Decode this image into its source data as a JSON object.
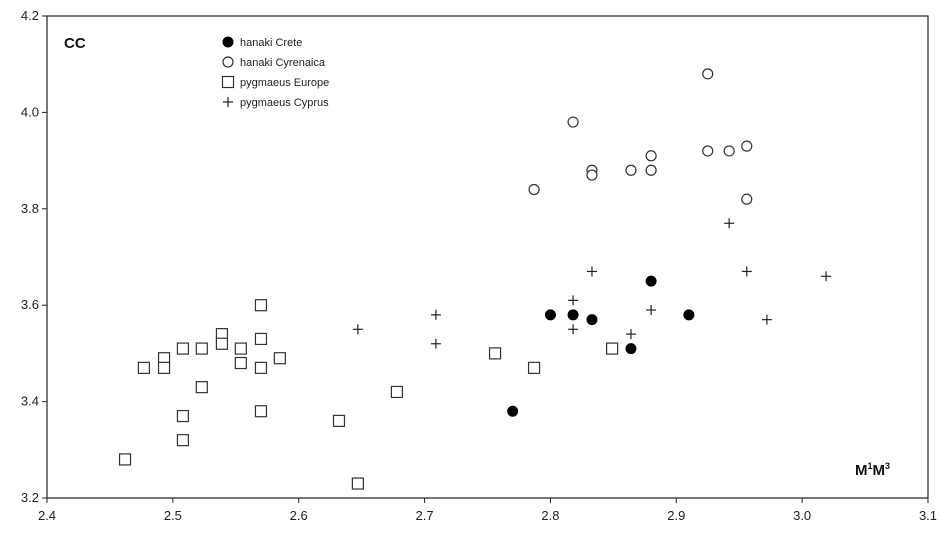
{
  "chart_data": {
    "type": "scatter",
    "title": "",
    "corner_label": "CC",
    "xlabel_main": "M",
    "xlabel_sup1": "1",
    "xlabel_mid": "M",
    "xlabel_sup2": "3",
    "xlim": [
      2.4,
      3.1
    ],
    "ylim": [
      3.2,
      4.2
    ],
    "xticks": [
      "2.4",
      "2.5",
      "2.6",
      "2.7",
      "2.8",
      "2.9",
      "3.0",
      "3.1"
    ],
    "yticks": [
      "3.2",
      "3.4",
      "3.6",
      "3.8",
      "4.0",
      "4.2"
    ],
    "grid": false,
    "legend_position": "top-left",
    "series": [
      {
        "name": "hanaki Crete",
        "marker": "filled-circle",
        "points": [
          [
            2.77,
            3.38
          ],
          [
            2.8,
            3.58
          ],
          [
            2.818,
            3.58
          ],
          [
            2.833,
            3.57
          ],
          [
            2.864,
            3.51
          ],
          [
            2.88,
            3.65
          ],
          [
            2.91,
            3.58
          ]
        ]
      },
      {
        "name": "hanaki Cyrenaica",
        "marker": "open-circle",
        "points": [
          [
            2.787,
            3.84
          ],
          [
            2.818,
            3.98
          ],
          [
            2.833,
            3.88
          ],
          [
            2.833,
            3.87
          ],
          [
            2.864,
            3.88
          ],
          [
            2.88,
            3.91
          ],
          [
            2.88,
            3.88
          ],
          [
            2.925,
            4.08
          ],
          [
            2.925,
            3.92
          ],
          [
            2.942,
            3.92
          ],
          [
            2.956,
            3.93
          ],
          [
            2.956,
            3.82
          ]
        ]
      },
      {
        "name": "pygmaeus Europe",
        "marker": "open-square",
        "points": [
          [
            2.462,
            3.28
          ],
          [
            2.477,
            3.47
          ],
          [
            2.493,
            3.49
          ],
          [
            2.493,
            3.47
          ],
          [
            2.508,
            3.51
          ],
          [
            2.508,
            3.37
          ],
          [
            2.508,
            3.32
          ],
          [
            2.523,
            3.51
          ],
          [
            2.523,
            3.43
          ],
          [
            2.539,
            3.54
          ],
          [
            2.539,
            3.52
          ],
          [
            2.554,
            3.51
          ],
          [
            2.554,
            3.48
          ],
          [
            2.57,
            3.6
          ],
          [
            2.57,
            3.53
          ],
          [
            2.57,
            3.47
          ],
          [
            2.57,
            3.38
          ],
          [
            2.585,
            3.49
          ],
          [
            2.632,
            3.36
          ],
          [
            2.647,
            3.23
          ],
          [
            2.678,
            3.42
          ],
          [
            2.756,
            3.5
          ],
          [
            2.787,
            3.47
          ],
          [
            2.849,
            3.51
          ]
        ]
      },
      {
        "name": "pygmaeus Cyprus",
        "marker": "plus",
        "points": [
          [
            2.647,
            3.55
          ],
          [
            2.709,
            3.58
          ],
          [
            2.709,
            3.52
          ],
          [
            2.818,
            3.61
          ],
          [
            2.818,
            3.55
          ],
          [
            2.833,
            3.67
          ],
          [
            2.864,
            3.54
          ],
          [
            2.88,
            3.59
          ],
          [
            2.942,
            3.77
          ],
          [
            2.956,
            3.67
          ],
          [
            2.972,
            3.57
          ],
          [
            3.019,
            3.66
          ]
        ]
      }
    ]
  }
}
